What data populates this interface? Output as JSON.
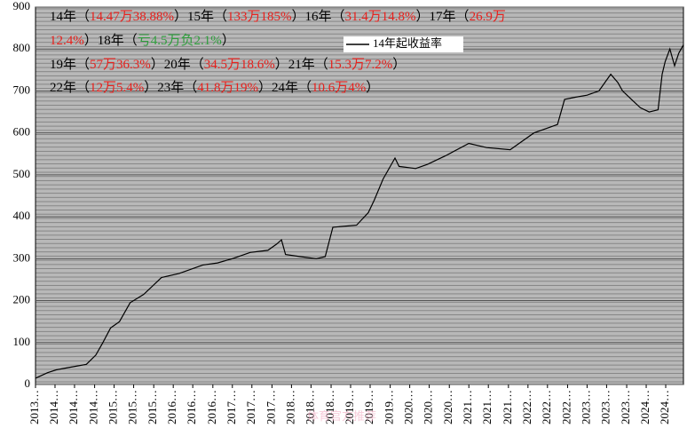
{
  "chart_data": {
    "type": "line",
    "x": [
      2013.97,
      2014.17,
      2014.32,
      2014.51,
      2014.83,
      2014.99,
      2015.11,
      2015.24,
      2015.39,
      2015.57,
      2015.8,
      2016.1,
      2016.4,
      2016.8,
      2017.05,
      2017.3,
      2017.6,
      2017.9,
      2018.05,
      2018.13,
      2018.2,
      2018.45,
      2018.72,
      2018.87,
      2019.0,
      2019.4,
      2019.6,
      2019.7,
      2019.85,
      2020.05,
      2020.12,
      2020.4,
      2020.6,
      2020.9,
      2021.3,
      2021.6,
      2022.0,
      2022.2,
      2022.4,
      2022.6,
      2022.8,
      2022.92,
      2023.1,
      2023.3,
      2023.5,
      2023.7,
      2023.82,
      2023.9,
      2024.05,
      2024.2,
      2024.35,
      2024.5,
      2024.57,
      2024.62,
      2024.7,
      2024.78,
      2024.85,
      2024.93
    ],
    "series": [
      {
        "name": "14年起收益率",
        "color": "#000000",
        "values": [
          15,
          28,
          35,
          40,
          48,
          70,
          100,
          135,
          150,
          195,
          215,
          255,
          265,
          285,
          290,
          300,
          315,
          320,
          335,
          345,
          310,
          305,
          300,
          305,
          375,
          380,
          410,
          440,
          490,
          540,
          520,
          515,
          525,
          545,
          575,
          565,
          560,
          580,
          600,
          610,
          620,
          680,
          685,
          690,
          700,
          740,
          720,
          700,
          680,
          660,
          650,
          655,
          740,
          770,
          800,
          760,
          790,
          810
        ]
      }
    ],
    "xlim": [
      2013.97,
      2024.93
    ],
    "xticks": [
      {
        "value": 2013.97,
        "label": "2013…"
      },
      {
        "value": 2014.3,
        "label": "2014…"
      },
      {
        "value": 2014.63,
        "label": "2014…"
      },
      {
        "value": 2014.97,
        "label": "2014…"
      },
      {
        "value": 2015.3,
        "label": "2015…"
      },
      {
        "value": 2015.63,
        "label": "2015…"
      },
      {
        "value": 2015.97,
        "label": "2015…"
      },
      {
        "value": 2016.3,
        "label": "2016…"
      },
      {
        "value": 2016.63,
        "label": "2016…"
      },
      {
        "value": 2016.97,
        "label": "2016…"
      },
      {
        "value": 2017.3,
        "label": "2017…"
      },
      {
        "value": 2017.63,
        "label": "2017…"
      },
      {
        "value": 2017.97,
        "label": "2017…"
      },
      {
        "value": 2018.3,
        "label": "2018…"
      },
      {
        "value": 2018.63,
        "label": "2018…"
      },
      {
        "value": 2018.97,
        "label": "2018…"
      },
      {
        "value": 2019.3,
        "label": "2019…"
      },
      {
        "value": 2019.63,
        "label": "2019…"
      },
      {
        "value": 2019.97,
        "label": "2019…"
      },
      {
        "value": 2020.3,
        "label": "2020…"
      },
      {
        "value": 2020.63,
        "label": "2020…"
      },
      {
        "value": 2020.97,
        "label": "2020…"
      },
      {
        "value": 2021.3,
        "label": "2021…"
      },
      {
        "value": 2021.63,
        "label": "2021…"
      },
      {
        "value": 2021.97,
        "label": "2021…"
      },
      {
        "value": 2022.3,
        "label": "2022…"
      },
      {
        "value": 2022.63,
        "label": "2022…"
      },
      {
        "value": 2022.97,
        "label": "2022…"
      },
      {
        "value": 2023.3,
        "label": "2023…"
      },
      {
        "value": 2023.63,
        "label": "2023…"
      },
      {
        "value": 2023.97,
        "label": "2023…"
      },
      {
        "value": 2024.3,
        "label": "2024…"
      },
      {
        "value": 2024.63,
        "label": "2024…"
      }
    ],
    "ylim": [
      0,
      900
    ],
    "yticks": [
      0,
      100,
      200,
      300,
      400,
      500,
      600,
      700,
      800,
      900
    ],
    "grid": true,
    "legend": "top-center",
    "annotations": [
      [
        {
          "text": "14年（",
          "color": "#000000"
        },
        {
          "text": "14.47万38.88%",
          "color": "#e8201c"
        },
        {
          "text": "）15年（",
          "color": "#000000"
        },
        {
          "text": "133万185%",
          "color": "#e8201c"
        },
        {
          "text": "）16年（",
          "color": "#000000"
        },
        {
          "text": "31.4万14.8%",
          "color": "#e8201c"
        },
        {
          "text": "）17年（",
          "color": "#000000"
        },
        {
          "text": "26.9万",
          "color": "#e8201c"
        }
      ],
      [
        {
          "text": "12.4%",
          "color": "#e8201c"
        },
        {
          "text": "）18年（",
          "color": "#000000"
        },
        {
          "text": "亏4.5万负2.1%",
          "color": "#2e9e3c"
        },
        {
          "text": "）",
          "color": "#000000"
        }
      ],
      [
        {
          "text": "19年（",
          "color": "#000000"
        },
        {
          "text": "57万36.3%",
          "color": "#e8201c"
        },
        {
          "text": "）20年（",
          "color": "#000000"
        },
        {
          "text": "34.5万18.6%",
          "color": "#e8201c"
        },
        {
          "text": "）21年（",
          "color": "#000000"
        },
        {
          "text": "15.3万7.2%",
          "color": "#e8201c"
        },
        {
          "text": "）",
          "color": "#000000"
        }
      ],
      [
        {
          "text": "22年（",
          "color": "#000000"
        },
        {
          "text": "12万5.4%",
          "color": "#e8201c"
        },
        {
          "text": "）23年（",
          "color": "#000000"
        },
        {
          "text": "41.8万19%",
          "color": "#e8201c"
        },
        {
          "text": "）24年（",
          "color": "#000000"
        },
        {
          "text": "10.6万4%",
          "color": "#e8201c"
        },
        {
          "text": "）",
          "color": "#000000"
        }
      ]
    ],
    "watermark": "体育官方推荐"
  }
}
